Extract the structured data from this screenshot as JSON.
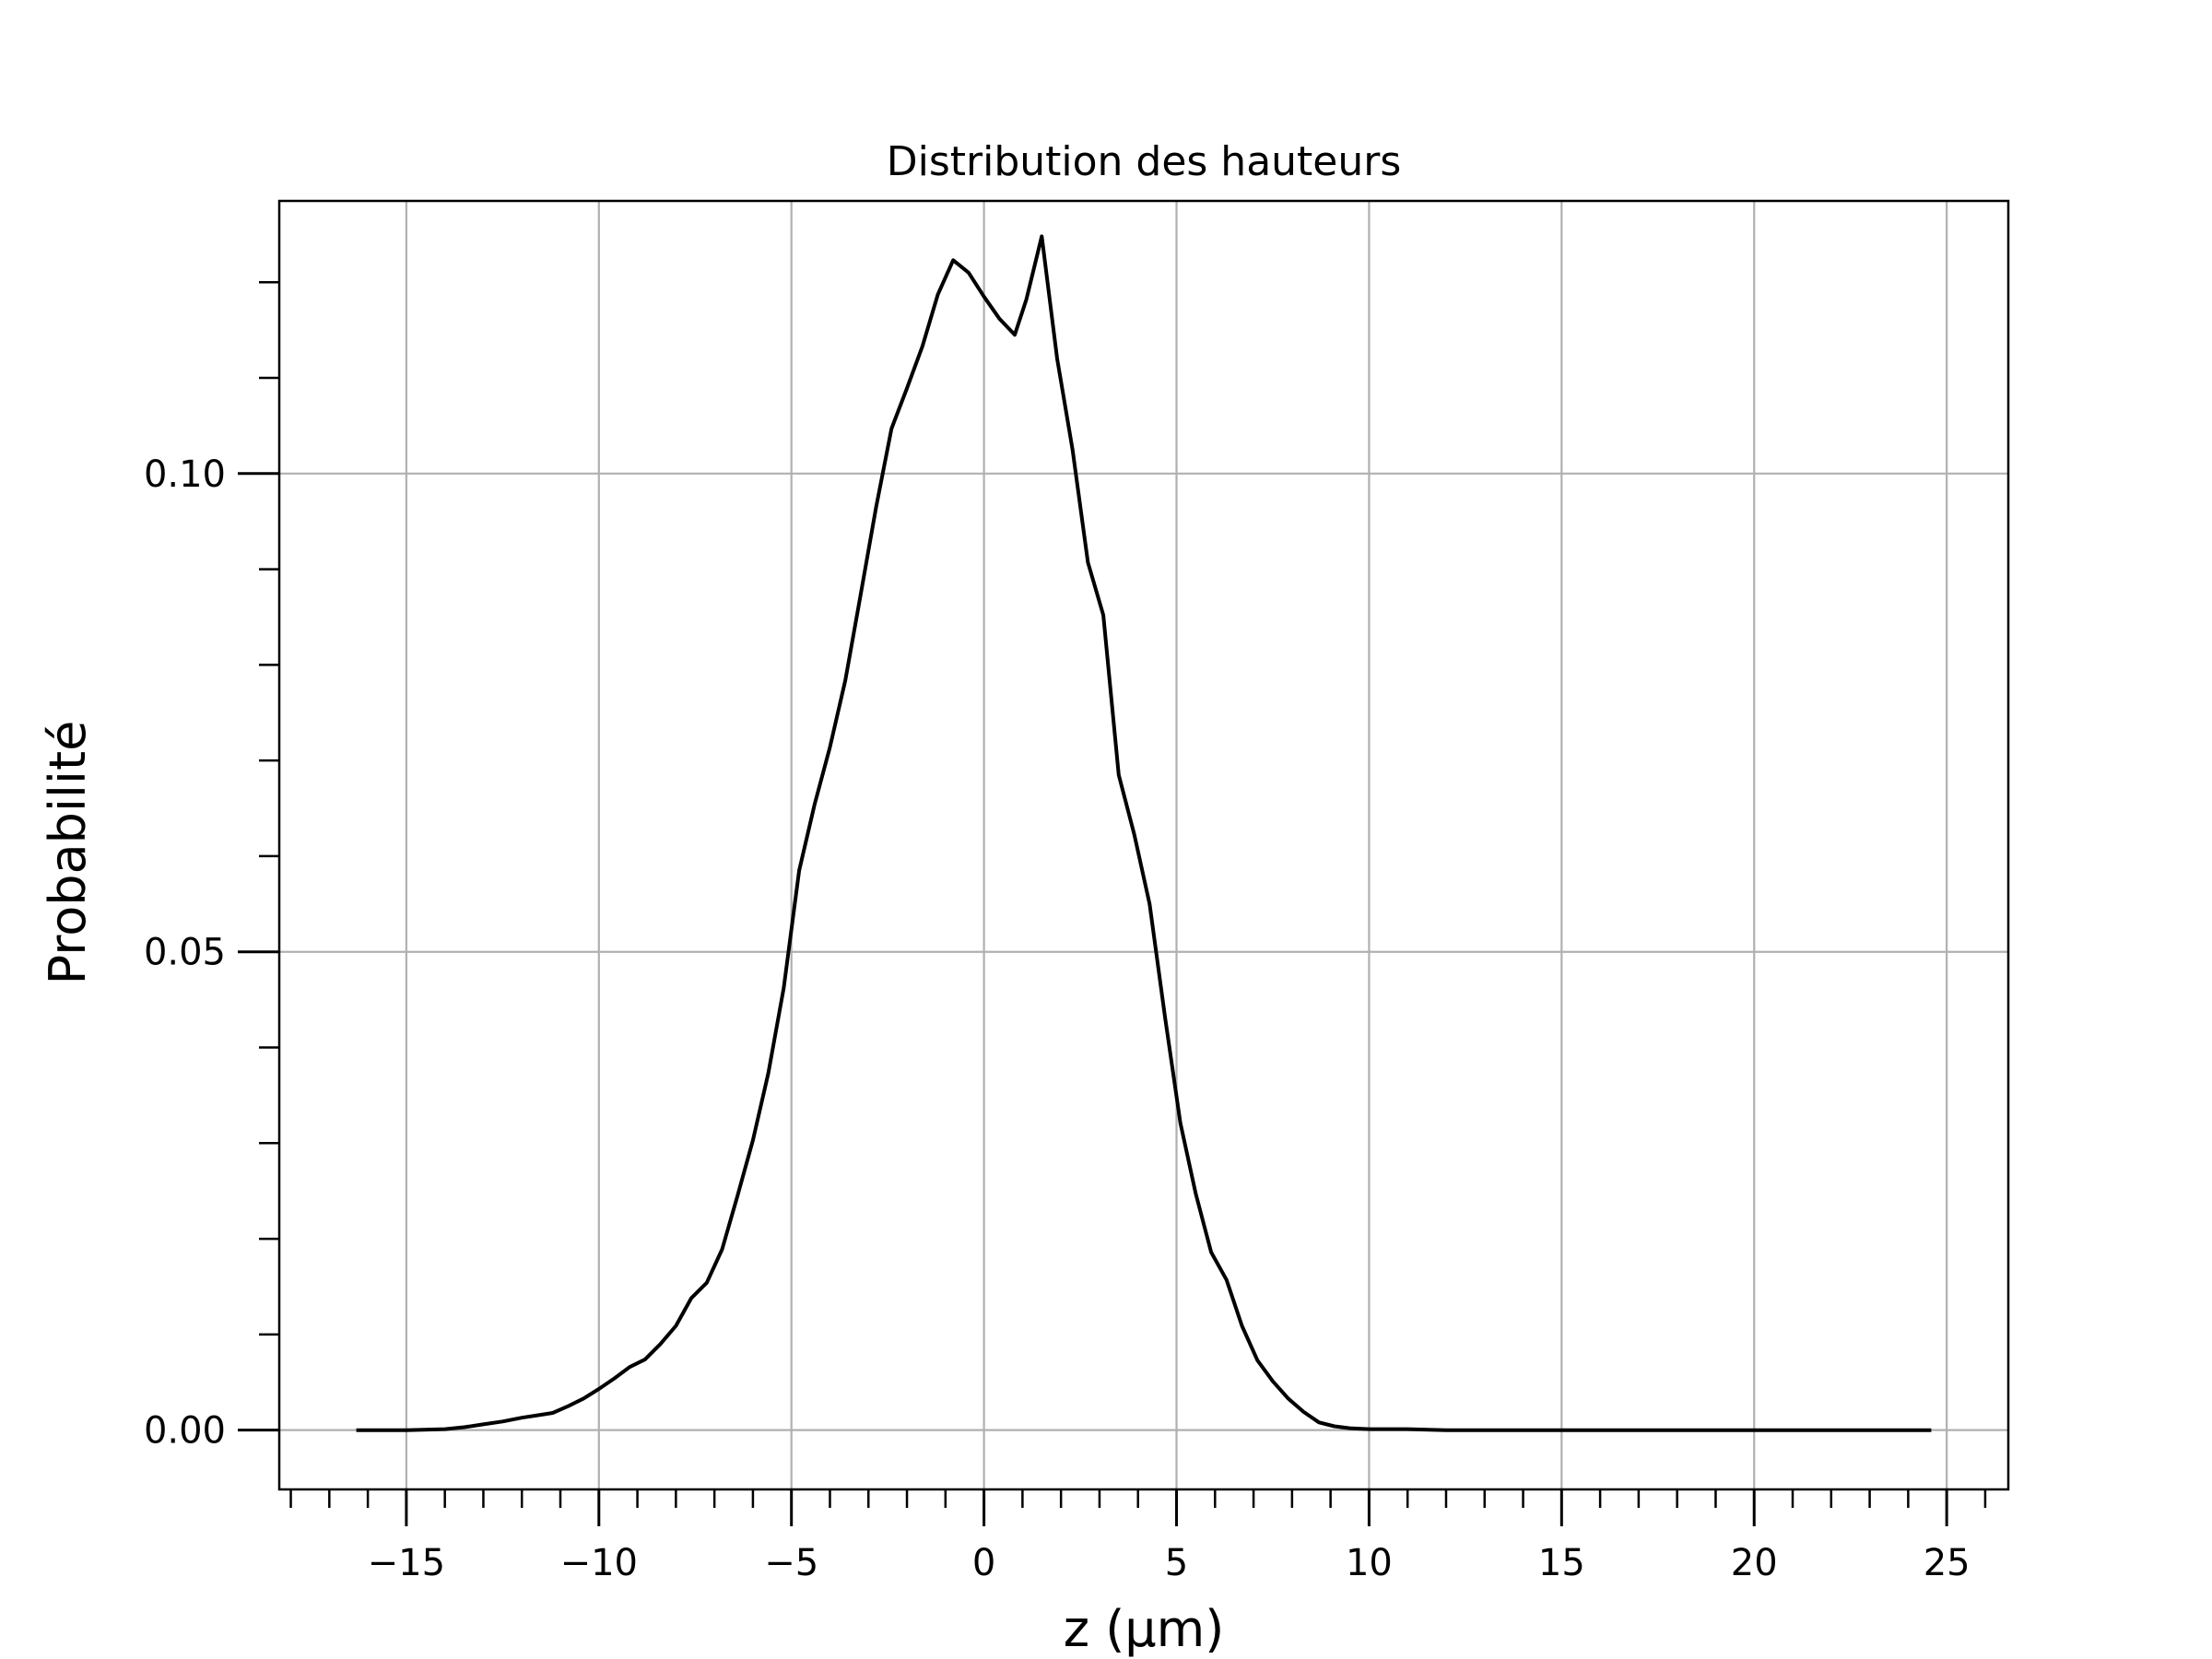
{
  "chart_data": {
    "type": "line",
    "title": "Distribution des hauteurs",
    "xlabel": "z (µm)",
    "ylabel": "Probabilité",
    "xlim": [
      -18.3,
      26.6
    ],
    "ylim": [
      -0.0062,
      0.1285
    ],
    "x_ticks": [
      -15,
      -10,
      -5,
      0,
      5,
      10,
      15,
      20,
      25
    ],
    "x_tick_labels": [
      "−15",
      "−10",
      "−5",
      "0",
      "5",
      "10",
      "15",
      "20",
      "25"
    ],
    "y_ticks": [
      0.0,
      0.05,
      0.1
    ],
    "y_tick_labels": [
      "0.00",
      "0.05",
      "0.10"
    ],
    "grid": true,
    "legend": "none",
    "line_color": "#000000",
    "grid_color": "#b0b0b0",
    "series": [
      {
        "x": [
          -16.3,
          -15.0,
          -14.0,
          -13.5,
          -13.0,
          -12.5,
          -12.0,
          -11.5,
          -11.2,
          -10.8,
          -10.4,
          -10.0,
          -9.6,
          -9.2,
          -8.8,
          -8.4,
          -8.0,
          -7.6,
          -7.2,
          -6.8,
          -6.4,
          -6.0,
          -5.6,
          -5.2,
          -4.8,
          -4.4,
          -4.0,
          -3.6,
          -3.2,
          -2.8,
          -2.4,
          -2.0,
          -1.6,
          -1.2,
          -0.8,
          -0.4,
          0.0,
          0.4,
          0.8,
          1.1,
          1.5,
          1.9,
          2.3,
          2.7,
          3.1,
          3.5,
          3.9,
          4.3,
          4.7,
          5.1,
          5.5,
          5.9,
          6.3,
          6.7,
          7.1,
          7.5,
          7.9,
          8.3,
          8.7,
          9.1,
          9.5,
          10.0,
          11.0,
          12.0,
          14.0,
          16.0,
          18.0,
          20.0,
          22.0,
          24.6
        ],
        "y": [
          0.0,
          0.0,
          0.0001,
          0.0003,
          0.0006,
          0.0009,
          0.0013,
          0.0016,
          0.0018,
          0.0025,
          0.0033,
          0.0043,
          0.0054,
          0.0066,
          0.0074,
          0.009,
          0.0109,
          0.0138,
          0.0154,
          0.0189,
          0.0245,
          0.0303,
          0.0373,
          0.0462,
          0.0585,
          0.0654,
          0.0714,
          0.0784,
          0.0874,
          0.0965,
          0.1047,
          0.1089,
          0.1133,
          0.1187,
          0.1223,
          0.121,
          0.1185,
          0.1162,
          0.1145,
          0.1182,
          0.1248,
          0.112,
          0.1025,
          0.0907,
          0.0852,
          0.0685,
          0.0623,
          0.055,
          0.0432,
          0.0321,
          0.0247,
          0.0186,
          0.0157,
          0.0109,
          0.0073,
          0.0051,
          0.0033,
          0.0019,
          0.0008,
          0.0004,
          0.0002,
          0.0001,
          0.0001,
          0.0,
          0.0,
          0.0,
          0.0,
          0.0,
          0.0,
          0.0
        ]
      }
    ]
  }
}
